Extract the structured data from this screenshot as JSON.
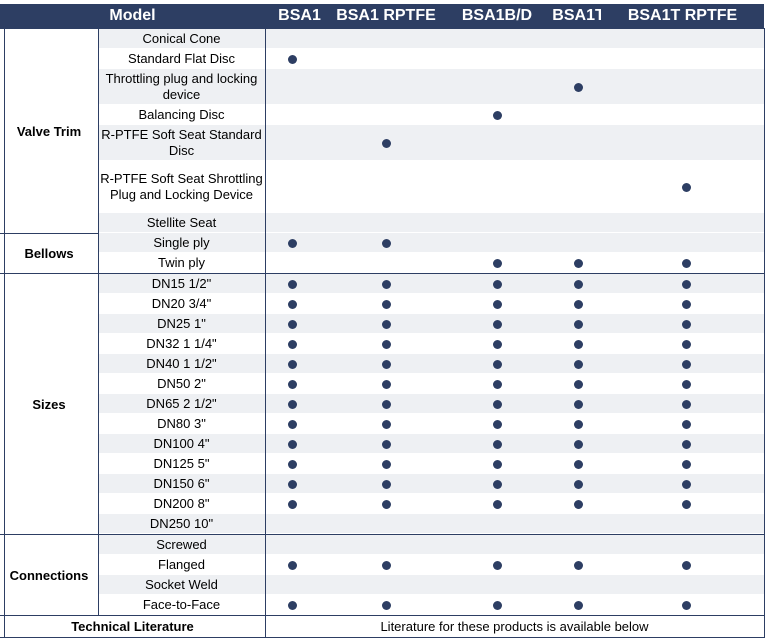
{
  "header": {
    "model_label": "Model",
    "columns": [
      "BSA1",
      "BSA1 RPTFE",
      "BSA1B/D",
      "BSA1T",
      "BSA1T RPTFE"
    ]
  },
  "groups": [
    {
      "name": "Valve Trim",
      "rows": [
        {
          "label": "Conical Cone",
          "marks": [
            false,
            false,
            false,
            false,
            false
          ]
        },
        {
          "label": "Standard Flat Disc",
          "marks": [
            true,
            false,
            false,
            false,
            false
          ]
        },
        {
          "label": "Throttling plug and locking device",
          "marks": [
            false,
            false,
            false,
            true,
            false
          ]
        },
        {
          "label": "Balancing Disc",
          "marks": [
            false,
            false,
            true,
            false,
            false
          ]
        },
        {
          "label": "R-PTFE Soft Seat Standard Disc",
          "marks": [
            false,
            true,
            false,
            false,
            false
          ]
        },
        {
          "label": "R-PTFE Soft Seat Shrottling Plug and Locking Device",
          "marks": [
            false,
            false,
            false,
            false,
            true
          ]
        },
        {
          "label": "Stellite Seat",
          "marks": [
            false,
            false,
            false,
            false,
            false
          ]
        }
      ]
    },
    {
      "name": "Bellows",
      "rows": [
        {
          "label": "Single ply",
          "marks": [
            true,
            true,
            false,
            false,
            false
          ]
        },
        {
          "label": "Twin ply",
          "marks": [
            false,
            false,
            true,
            true,
            true
          ]
        }
      ]
    },
    {
      "name": "Sizes",
      "rows": [
        {
          "label": "DN15 1/2\"",
          "marks": [
            true,
            true,
            true,
            true,
            true
          ]
        },
        {
          "label": "DN20 3/4\"",
          "marks": [
            true,
            true,
            true,
            true,
            true
          ]
        },
        {
          "label": "DN25 1\"",
          "marks": [
            true,
            true,
            true,
            true,
            true
          ]
        },
        {
          "label": "DN32 1 1/4\"",
          "marks": [
            true,
            true,
            true,
            true,
            true
          ]
        },
        {
          "label": "DN40 1 1/2\"",
          "marks": [
            true,
            true,
            true,
            true,
            true
          ]
        },
        {
          "label": "DN50 2\"",
          "marks": [
            true,
            true,
            true,
            true,
            true
          ]
        },
        {
          "label": "DN65 2 1/2\"",
          "marks": [
            true,
            true,
            true,
            true,
            true
          ]
        },
        {
          "label": "DN80 3\"",
          "marks": [
            true,
            true,
            true,
            true,
            true
          ]
        },
        {
          "label": "DN100 4\"",
          "marks": [
            true,
            true,
            true,
            true,
            true
          ]
        },
        {
          "label": "DN125 5\"",
          "marks": [
            true,
            true,
            true,
            true,
            true
          ]
        },
        {
          "label": "DN150 6\"",
          "marks": [
            true,
            true,
            true,
            true,
            true
          ]
        },
        {
          "label": "DN200 8\"",
          "marks": [
            true,
            true,
            true,
            true,
            true
          ]
        },
        {
          "label": "DN250 10\"",
          "marks": [
            false,
            false,
            false,
            false,
            false
          ]
        }
      ]
    },
    {
      "name": "Connections",
      "rows": [
        {
          "label": "Screwed",
          "marks": [
            false,
            false,
            false,
            false,
            false
          ]
        },
        {
          "label": "Flanged",
          "marks": [
            true,
            true,
            true,
            true,
            true
          ]
        },
        {
          "label": "Socket Weld",
          "marks": [
            false,
            false,
            false,
            false,
            false
          ]
        },
        {
          "label": "Face-to-Face",
          "marks": [
            true,
            true,
            true,
            true,
            true
          ]
        }
      ]
    }
  ],
  "footer": {
    "label": "Technical Literature",
    "text": "Literature for these products is available below"
  },
  "colors": {
    "header_bg": "#2d3e63",
    "dot": "#2d3e63",
    "row_shade": "#eef0f3",
    "border": "#2d3e63"
  }
}
